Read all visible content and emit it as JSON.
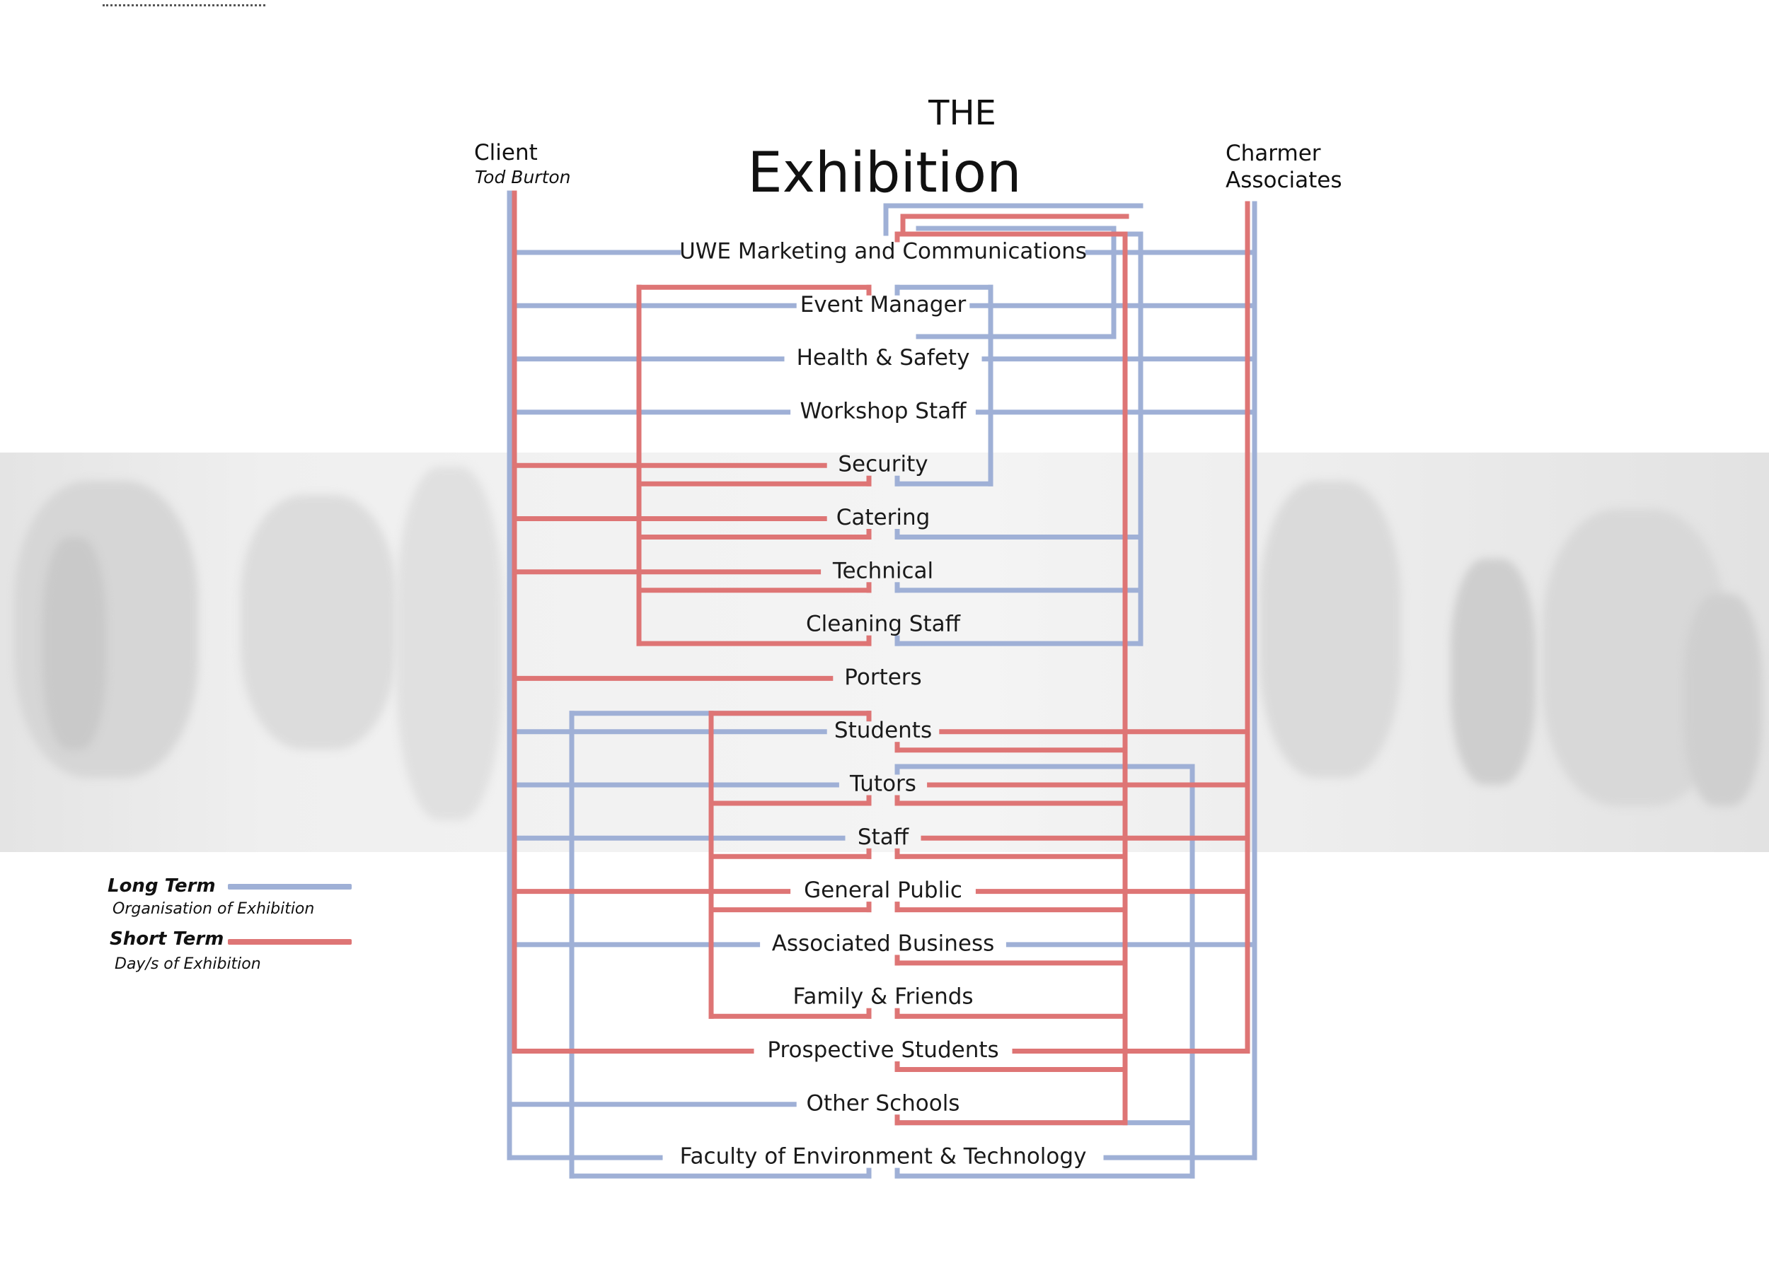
{
  "title": {
    "line1": "THE",
    "line2": "Exhibition"
  },
  "client": {
    "label": "Client",
    "name": "Tod Burton"
  },
  "charmer": {
    "line1": "Charmer",
    "line2": "Associates"
  },
  "legend": {
    "long": {
      "title": "Long Term",
      "subtitle": "Organisation of Exhibition"
    },
    "short": {
      "title": "Short Term",
      "subtitle": "Day/s of Exhibition"
    }
  },
  "colors": {
    "long_term": "#9fb0d6",
    "short_term": "#de7575",
    "photo_band": "#eeeeee",
    "text": "#111111"
  },
  "nodes": [
    {
      "id": "uwe",
      "label": "UWE Marketing and Communications"
    },
    {
      "id": "event",
      "label": "Event Manager"
    },
    {
      "id": "hs",
      "label": "Health & Safety"
    },
    {
      "id": "workshop",
      "label": "Workshop Staff"
    },
    {
      "id": "security",
      "label": "Security"
    },
    {
      "id": "catering",
      "label": "Catering"
    },
    {
      "id": "technical",
      "label": "Technical"
    },
    {
      "id": "cleaning",
      "label": "Cleaning Staff"
    },
    {
      "id": "porters",
      "label": "Porters"
    },
    {
      "id": "students",
      "label": "Students"
    },
    {
      "id": "tutors",
      "label": "Tutors"
    },
    {
      "id": "staff",
      "label": "Staff"
    },
    {
      "id": "public",
      "label": "General Public"
    },
    {
      "id": "business",
      "label": "Associated Business"
    },
    {
      "id": "family",
      "label": "Family & Friends"
    },
    {
      "id": "prospective",
      "label": "Prospective Students"
    },
    {
      "id": "schools",
      "label": "Other Schools"
    },
    {
      "id": "faculty",
      "label": "Faculty of Environment & Technology"
    }
  ],
  "links": [
    {
      "from": "client",
      "to": "uwe",
      "term": "long"
    },
    {
      "from": "client",
      "to": "event",
      "term": "long"
    },
    {
      "from": "client",
      "to": "hs",
      "term": "long"
    },
    {
      "from": "client",
      "to": "workshop",
      "term": "long"
    },
    {
      "from": "client",
      "to": "students",
      "term": "long"
    },
    {
      "from": "client",
      "to": "tutors",
      "term": "long"
    },
    {
      "from": "client",
      "to": "staff",
      "term": "long"
    },
    {
      "from": "client",
      "to": "business",
      "term": "long"
    },
    {
      "from": "client",
      "to": "schools",
      "term": "long"
    },
    {
      "from": "client",
      "to": "faculty",
      "term": "long"
    },
    {
      "from": "client",
      "to": "security",
      "term": "short"
    },
    {
      "from": "client",
      "to": "catering",
      "term": "short"
    },
    {
      "from": "client",
      "to": "technical",
      "term": "short"
    },
    {
      "from": "client",
      "to": "porters",
      "term": "short"
    },
    {
      "from": "client",
      "to": "public",
      "term": "short"
    },
    {
      "from": "client",
      "to": "prospective",
      "term": "short"
    },
    {
      "from": "charmer",
      "to": "uwe",
      "term": "long"
    },
    {
      "from": "charmer",
      "to": "event",
      "term": "long"
    },
    {
      "from": "charmer",
      "to": "hs",
      "term": "long"
    },
    {
      "from": "charmer",
      "to": "workshop",
      "term": "long"
    },
    {
      "from": "charmer",
      "to": "business",
      "term": "long"
    },
    {
      "from": "charmer",
      "to": "faculty",
      "term": "long"
    },
    {
      "from": "charmer",
      "to": "students",
      "term": "short"
    },
    {
      "from": "charmer",
      "to": "tutors",
      "term": "short"
    },
    {
      "from": "charmer",
      "to": "staff",
      "term": "short"
    },
    {
      "from": "charmer",
      "to": "public",
      "term": "short"
    },
    {
      "from": "charmer",
      "to": "prospective",
      "term": "short"
    },
    {
      "from": "event",
      "to": "security",
      "term": "short"
    },
    {
      "from": "event",
      "to": "catering",
      "term": "short"
    },
    {
      "from": "event",
      "to": "technical",
      "term": "short"
    },
    {
      "from": "event",
      "to": "cleaning",
      "term": "short"
    },
    {
      "from": "event",
      "to": "security",
      "term": "long"
    },
    {
      "from": "event",
      "to": "uwe",
      "term": "long"
    },
    {
      "from": "uwe",
      "to": "catering",
      "term": "long"
    },
    {
      "from": "uwe",
      "to": "technical",
      "term": "long"
    },
    {
      "from": "uwe",
      "to": "cleaning",
      "term": "long"
    },
    {
      "from": "uwe",
      "to": "students",
      "term": "short"
    },
    {
      "from": "uwe",
      "to": "tutors",
      "term": "short"
    },
    {
      "from": "uwe",
      "to": "staff",
      "term": "short"
    },
    {
      "from": "uwe",
      "to": "public",
      "term": "short"
    },
    {
      "from": "uwe",
      "to": "business",
      "term": "short"
    },
    {
      "from": "uwe",
      "to": "family",
      "term": "short"
    },
    {
      "from": "uwe",
      "to": "prospective",
      "term": "short"
    },
    {
      "from": "uwe",
      "to": "schools",
      "term": "short"
    },
    {
      "from": "students",
      "to": "tutors",
      "term": "short"
    },
    {
      "from": "students",
      "to": "staff",
      "term": "short"
    },
    {
      "from": "students",
      "to": "public",
      "term": "short"
    },
    {
      "from": "students",
      "to": "family",
      "term": "short"
    },
    {
      "from": "students",
      "to": "faculty",
      "term": "long"
    },
    {
      "from": "tutors",
      "to": "schools",
      "term": "long"
    },
    {
      "from": "tutors",
      "to": "faculty",
      "term": "long"
    }
  ]
}
